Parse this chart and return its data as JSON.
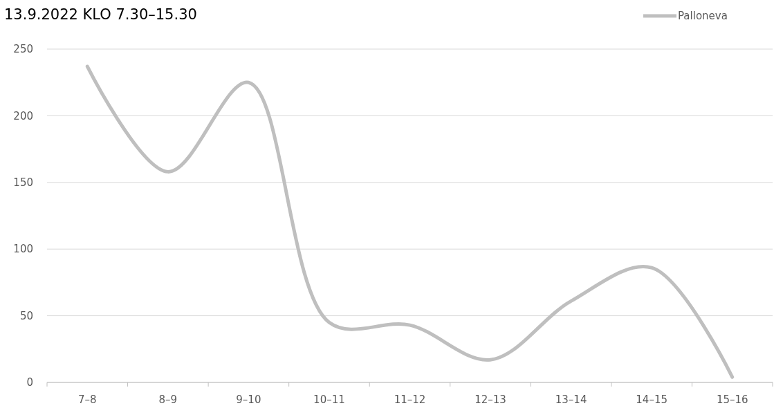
{
  "chart_data": {
    "type": "line",
    "title": "13.9.2022 KLO 7.30–15.30",
    "categories": [
      "7–8",
      "8–9",
      "9–10",
      "10–11",
      "11–12",
      "12–13",
      "13–14",
      "14–15",
      "15–16"
    ],
    "series": [
      {
        "name": "Palloneva",
        "color": "#bfbfbf",
        "values": [
          237,
          158,
          225,
          45,
          43,
          17,
          61,
          86,
          4
        ]
      }
    ],
    "ylim": [
      0,
      250
    ],
    "yticks": [
      0,
      50,
      100,
      150,
      200,
      250
    ],
    "grid": "y",
    "legend": "top right",
    "marker": "none",
    "line_style": "solid"
  }
}
